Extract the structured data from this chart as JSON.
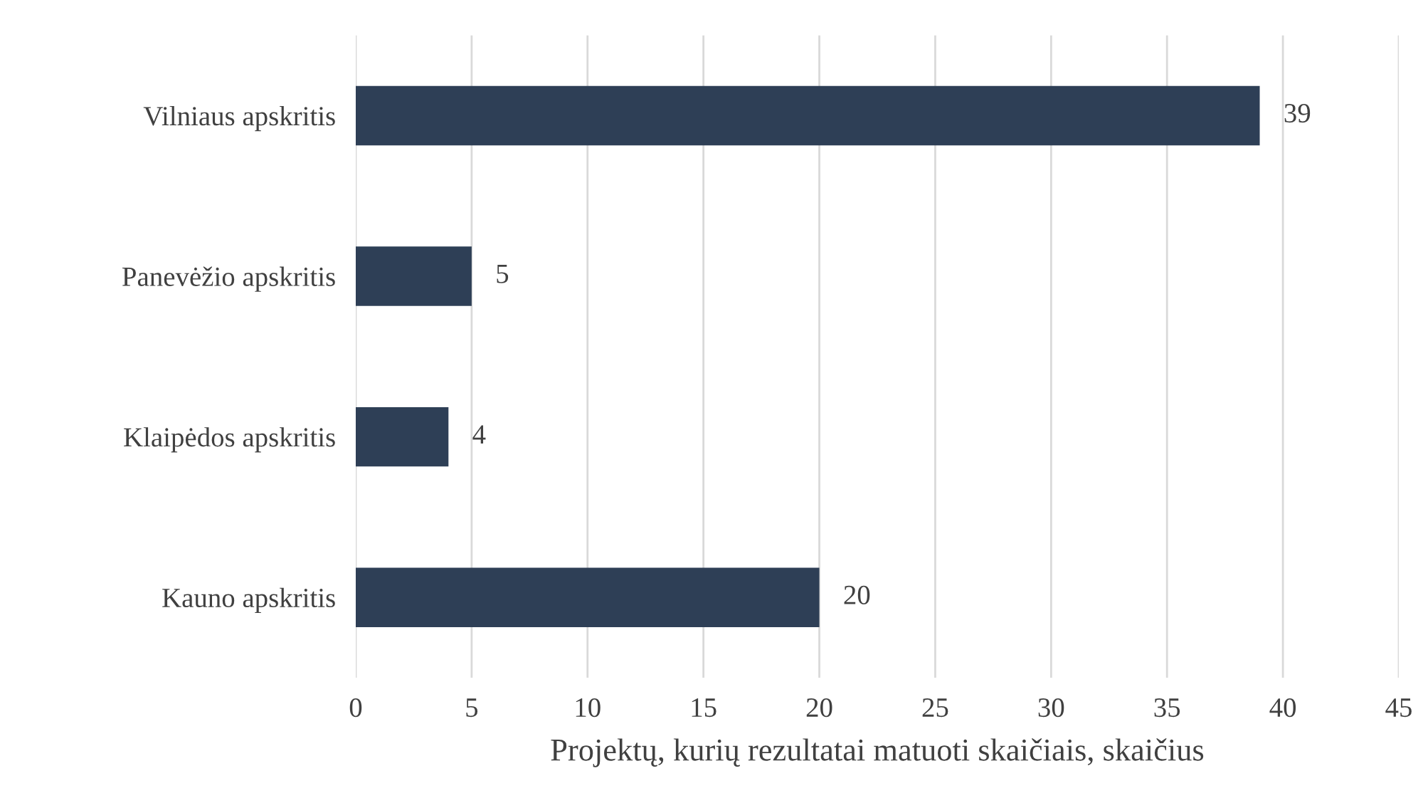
{
  "chart_data": {
    "type": "bar",
    "orientation": "horizontal",
    "categories": [
      "Vilniaus apskritis",
      "Panevėžio apskritis",
      "Klaipėdos apskritis",
      "Kauno apskritis"
    ],
    "values": [
      39,
      5,
      4,
      20
    ],
    "color": "#2e3f56",
    "xlabel": "Projektų, kurių rezultatai matuoti skaičiais, skaičius",
    "xlim": [
      0,
      45
    ],
    "xticks": [
      0,
      5,
      10,
      15,
      20,
      25,
      30,
      35,
      40,
      45
    ],
    "grid": "x",
    "data_labels": true,
    "legend": false
  }
}
